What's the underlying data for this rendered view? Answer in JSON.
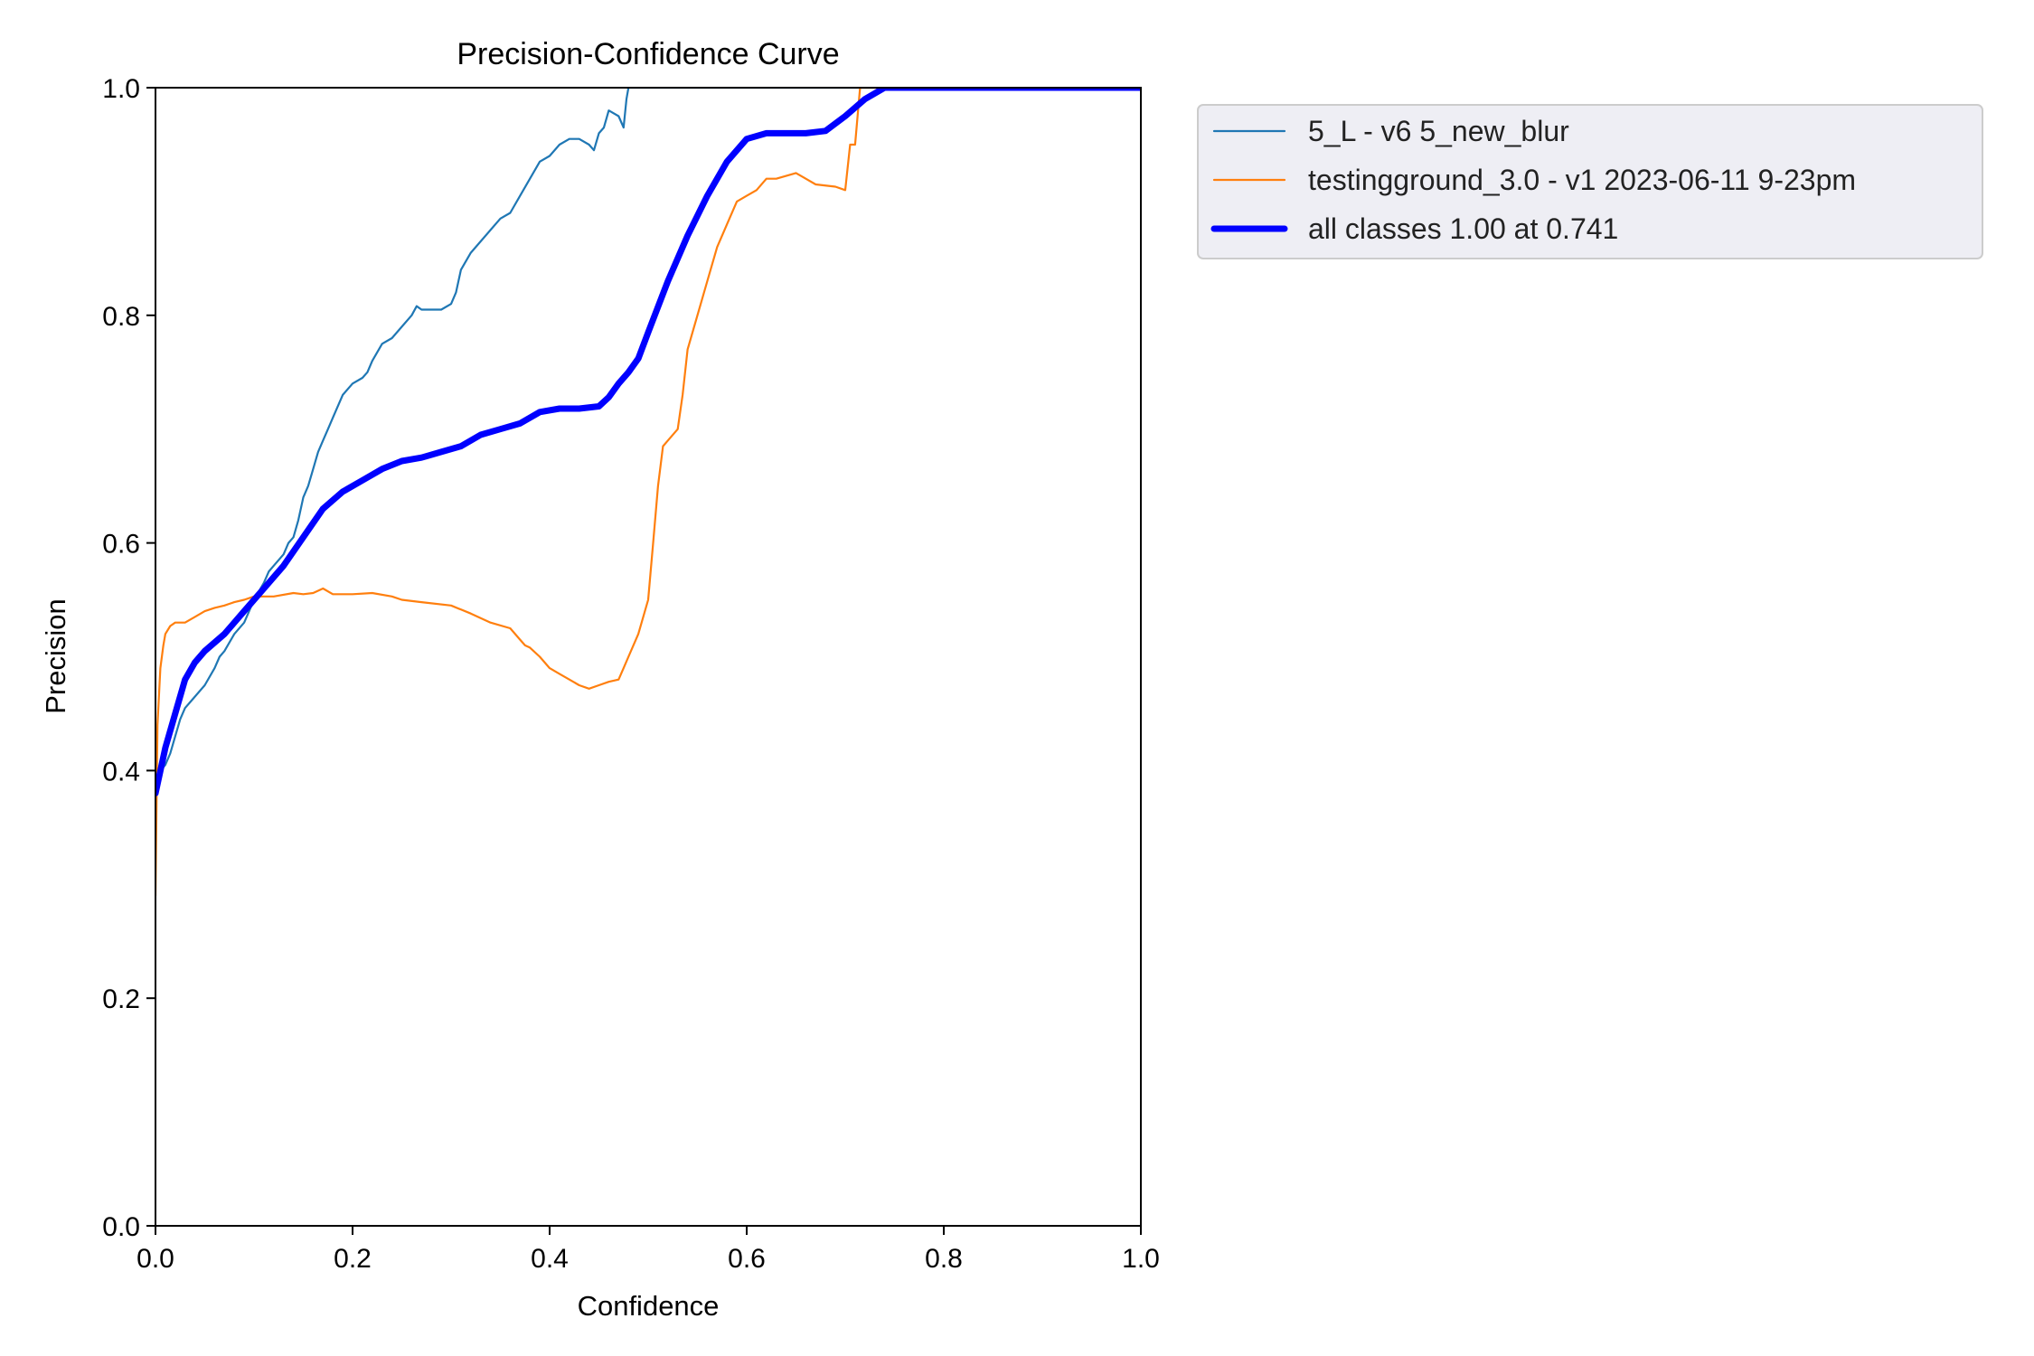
{
  "chart_data": {
    "type": "line",
    "title": "Precision-Confidence Curve",
    "xlabel": "Confidence",
    "ylabel": "Precision",
    "xlim": [
      0,
      1
    ],
    "ylim": [
      0,
      1
    ],
    "xticks": [
      "0.0",
      "0.2",
      "0.4",
      "0.6",
      "0.8",
      "1.0"
    ],
    "yticks": [
      "0.0",
      "0.2",
      "0.4",
      "0.6",
      "0.8",
      "1.0"
    ],
    "grid": false,
    "legend_position": "outside-top-right",
    "series": [
      {
        "name": "5_L - v6 5_new_blur",
        "color": "#1f77b4",
        "width": "thin",
        "x": [
          0.0,
          0.005,
          0.01,
          0.015,
          0.02,
          0.025,
          0.03,
          0.035,
          0.04,
          0.05,
          0.06,
          0.065,
          0.07,
          0.08,
          0.09,
          0.095,
          0.1,
          0.11,
          0.115,
          0.12,
          0.13,
          0.135,
          0.14,
          0.145,
          0.15,
          0.155,
          0.16,
          0.165,
          0.17,
          0.175,
          0.18,
          0.19,
          0.2,
          0.21,
          0.215,
          0.22,
          0.23,
          0.24,
          0.25,
          0.26,
          0.265,
          0.27,
          0.28,
          0.29,
          0.3,
          0.305,
          0.31,
          0.32,
          0.33,
          0.34,
          0.35,
          0.36,
          0.37,
          0.38,
          0.39,
          0.4,
          0.41,
          0.42,
          0.43,
          0.44,
          0.445,
          0.45,
          0.455,
          0.46,
          0.47,
          0.475,
          0.478,
          0.48,
          0.5,
          1.0
        ],
        "y": [
          0.38,
          0.4,
          0.405,
          0.415,
          0.43,
          0.445,
          0.455,
          0.46,
          0.465,
          0.475,
          0.49,
          0.5,
          0.505,
          0.52,
          0.53,
          0.54,
          0.55,
          0.565,
          0.575,
          0.58,
          0.59,
          0.6,
          0.605,
          0.62,
          0.64,
          0.65,
          0.665,
          0.68,
          0.69,
          0.7,
          0.71,
          0.73,
          0.74,
          0.745,
          0.75,
          0.76,
          0.775,
          0.78,
          0.79,
          0.8,
          0.808,
          0.805,
          0.805,
          0.805,
          0.81,
          0.82,
          0.84,
          0.855,
          0.865,
          0.875,
          0.885,
          0.89,
          0.905,
          0.92,
          0.935,
          0.94,
          0.95,
          0.955,
          0.955,
          0.95,
          0.945,
          0.96,
          0.965,
          0.98,
          0.975,
          0.965,
          0.99,
          1.0,
          1.0,
          1.0
        ]
      },
      {
        "name": "testingground_3.0 - v1 2023-06-11 9-23pm",
        "color": "#ff7f0e",
        "width": "thin",
        "x": [
          0.0,
          0.002,
          0.005,
          0.008,
          0.01,
          0.015,
          0.02,
          0.03,
          0.04,
          0.05,
          0.06,
          0.07,
          0.08,
          0.09,
          0.1,
          0.12,
          0.14,
          0.15,
          0.16,
          0.17,
          0.18,
          0.2,
          0.22,
          0.24,
          0.25,
          0.27,
          0.3,
          0.32,
          0.34,
          0.36,
          0.37,
          0.375,
          0.38,
          0.39,
          0.4,
          0.41,
          0.42,
          0.43,
          0.44,
          0.45,
          0.46,
          0.47,
          0.475,
          0.48,
          0.49,
          0.5,
          0.505,
          0.51,
          0.515,
          0.52,
          0.53,
          0.535,
          0.54,
          0.55,
          0.56,
          0.57,
          0.58,
          0.59,
          0.6,
          0.61,
          0.62,
          0.63,
          0.65,
          0.66,
          0.67,
          0.69,
          0.7,
          0.705,
          0.71,
          0.715,
          0.72,
          0.73,
          1.0
        ],
        "y": [
          0.29,
          0.44,
          0.49,
          0.51,
          0.52,
          0.527,
          0.53,
          0.53,
          0.535,
          0.54,
          0.543,
          0.545,
          0.548,
          0.55,
          0.553,
          0.553,
          0.556,
          0.555,
          0.556,
          0.56,
          0.555,
          0.555,
          0.556,
          0.553,
          0.55,
          0.548,
          0.545,
          0.538,
          0.53,
          0.525,
          0.515,
          0.51,
          0.508,
          0.5,
          0.49,
          0.485,
          0.48,
          0.475,
          0.472,
          0.475,
          0.478,
          0.48,
          0.49,
          0.5,
          0.52,
          0.55,
          0.6,
          0.65,
          0.685,
          0.69,
          0.7,
          0.73,
          0.77,
          0.8,
          0.83,
          0.86,
          0.88,
          0.9,
          0.905,
          0.91,
          0.92,
          0.92,
          0.925,
          0.92,
          0.915,
          0.913,
          0.91,
          0.95,
          0.95,
          1.0,
          1.0,
          1.0,
          1.0
        ]
      },
      {
        "name": "all classes 1.00 at 0.741",
        "color": "#0000ff",
        "width": "thick",
        "x": [
          0.0,
          0.01,
          0.02,
          0.03,
          0.04,
          0.05,
          0.07,
          0.09,
          0.11,
          0.13,
          0.15,
          0.17,
          0.19,
          0.21,
          0.23,
          0.25,
          0.27,
          0.29,
          0.31,
          0.33,
          0.35,
          0.37,
          0.39,
          0.41,
          0.43,
          0.45,
          0.46,
          0.47,
          0.48,
          0.49,
          0.5,
          0.52,
          0.54,
          0.56,
          0.58,
          0.6,
          0.62,
          0.64,
          0.66,
          0.68,
          0.7,
          0.72,
          0.74,
          0.78,
          1.0
        ],
        "y": [
          0.38,
          0.42,
          0.45,
          0.48,
          0.495,
          0.505,
          0.52,
          0.54,
          0.56,
          0.58,
          0.605,
          0.63,
          0.645,
          0.655,
          0.665,
          0.672,
          0.675,
          0.68,
          0.685,
          0.695,
          0.7,
          0.705,
          0.715,
          0.718,
          0.718,
          0.72,
          0.728,
          0.74,
          0.75,
          0.762,
          0.785,
          0.83,
          0.87,
          0.905,
          0.935,
          0.955,
          0.96,
          0.96,
          0.96,
          0.962,
          0.975,
          0.99,
          1.0,
          1.0,
          1.0
        ]
      }
    ]
  }
}
